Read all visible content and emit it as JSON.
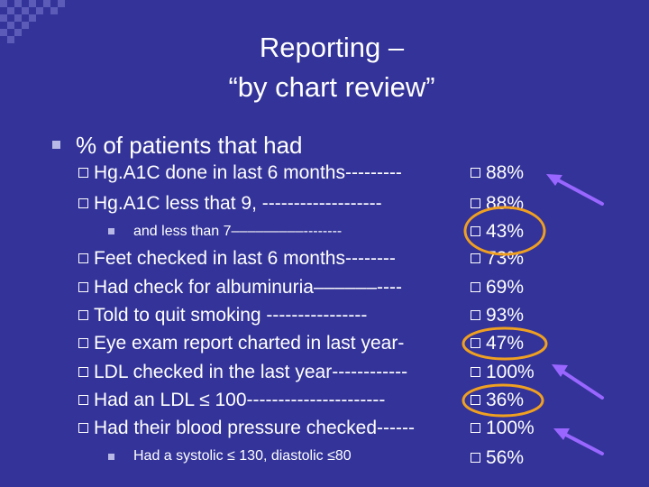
{
  "title": {
    "line1": "Reporting –",
    "line2": "“by chart review”"
  },
  "heading": "% of patients that had",
  "items": [
    {
      "label": "Hg.A1C done in last 6 months---------",
      "value": "88%"
    },
    {
      "label": "Hg.A1C less that 9, -------------------",
      "value": "88%"
    },
    {
      "label": "and less than 7–––––––––--------",
      "value": "43%"
    },
    {
      "label": "Feet checked in last 6 months--------",
      "value": "73%"
    },
    {
      "label": "Had check for albuminuria––––––----",
      "value": "69%"
    },
    {
      "label": "Told to quit smoking ----------------",
      "value": "93%"
    },
    {
      "label": "Eye exam report charted in last year-",
      "value": "47%"
    },
    {
      "label": "LDL checked in the last year------------",
      "value": "100%"
    },
    {
      "label": "Had an LDL ≤ 100----------------------",
      "value": "36%"
    },
    {
      "label": "Had their blood pressure checked------",
      "value": "100%"
    },
    {
      "label": "Had a systolic ≤ 130, diastolic ≤80",
      "value": "56%"
    }
  ],
  "colors": {
    "background": "#333399",
    "annotation_circle": "#f0a020",
    "annotation_arrow": "#9966ff"
  }
}
